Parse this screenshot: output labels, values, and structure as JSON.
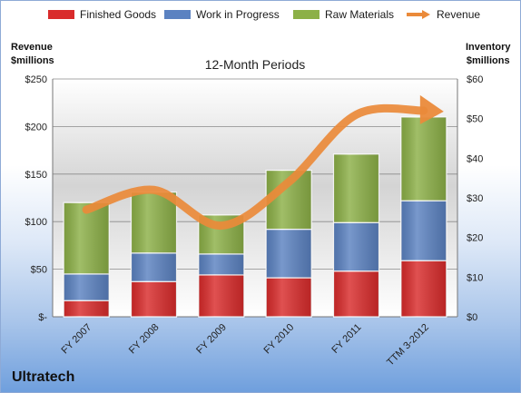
{
  "chart_data": {
    "type": "bar",
    "stacked": true,
    "title": "12-Month Periods",
    "footer": "Ultratech",
    "categories": [
      "FY 2007",
      "FY 2008",
      "FY 2009",
      "FY 2010",
      "FY 2011",
      "TTM 3-2012"
    ],
    "series": [
      {
        "name": "Finished Goods",
        "color": "#d92b2b",
        "axis": "left",
        "values": [
          17,
          37,
          44,
          41,
          48,
          59
        ]
      },
      {
        "name": "Work in Progress",
        "color": "#5b82c1",
        "axis": "left",
        "values": [
          28,
          30,
          22,
          51,
          51,
          63
        ]
      },
      {
        "name": "Raw Materials",
        "color": "#8cb047",
        "axis": "left",
        "values": [
          75,
          64,
          41,
          62,
          72,
          88
        ]
      }
    ],
    "line": {
      "name": "Revenue",
      "color": "#ea8a3a",
      "axis": "right",
      "values": [
        27,
        32,
        23,
        34,
        51,
        52
      ]
    },
    "left_axis": {
      "title_line1": "Revenue",
      "title_line2": "$millions",
      "ylim": [
        0,
        250
      ],
      "ticks": [
        0,
        50,
        100,
        150,
        200,
        250
      ],
      "tick_labels": [
        "$-",
        "$50",
        "$100",
        "$150",
        "$200",
        "$250"
      ]
    },
    "right_axis": {
      "title_line1": "Inventory",
      "title_line2": "$millions",
      "ylim": [
        0,
        60
      ],
      "ticks": [
        0,
        10,
        20,
        30,
        40,
        50,
        60
      ],
      "tick_labels": [
        "$0",
        "$10",
        "$20",
        "$30",
        "$40",
        "$50",
        "$60"
      ]
    },
    "grid": true,
    "legend_position": "top"
  }
}
